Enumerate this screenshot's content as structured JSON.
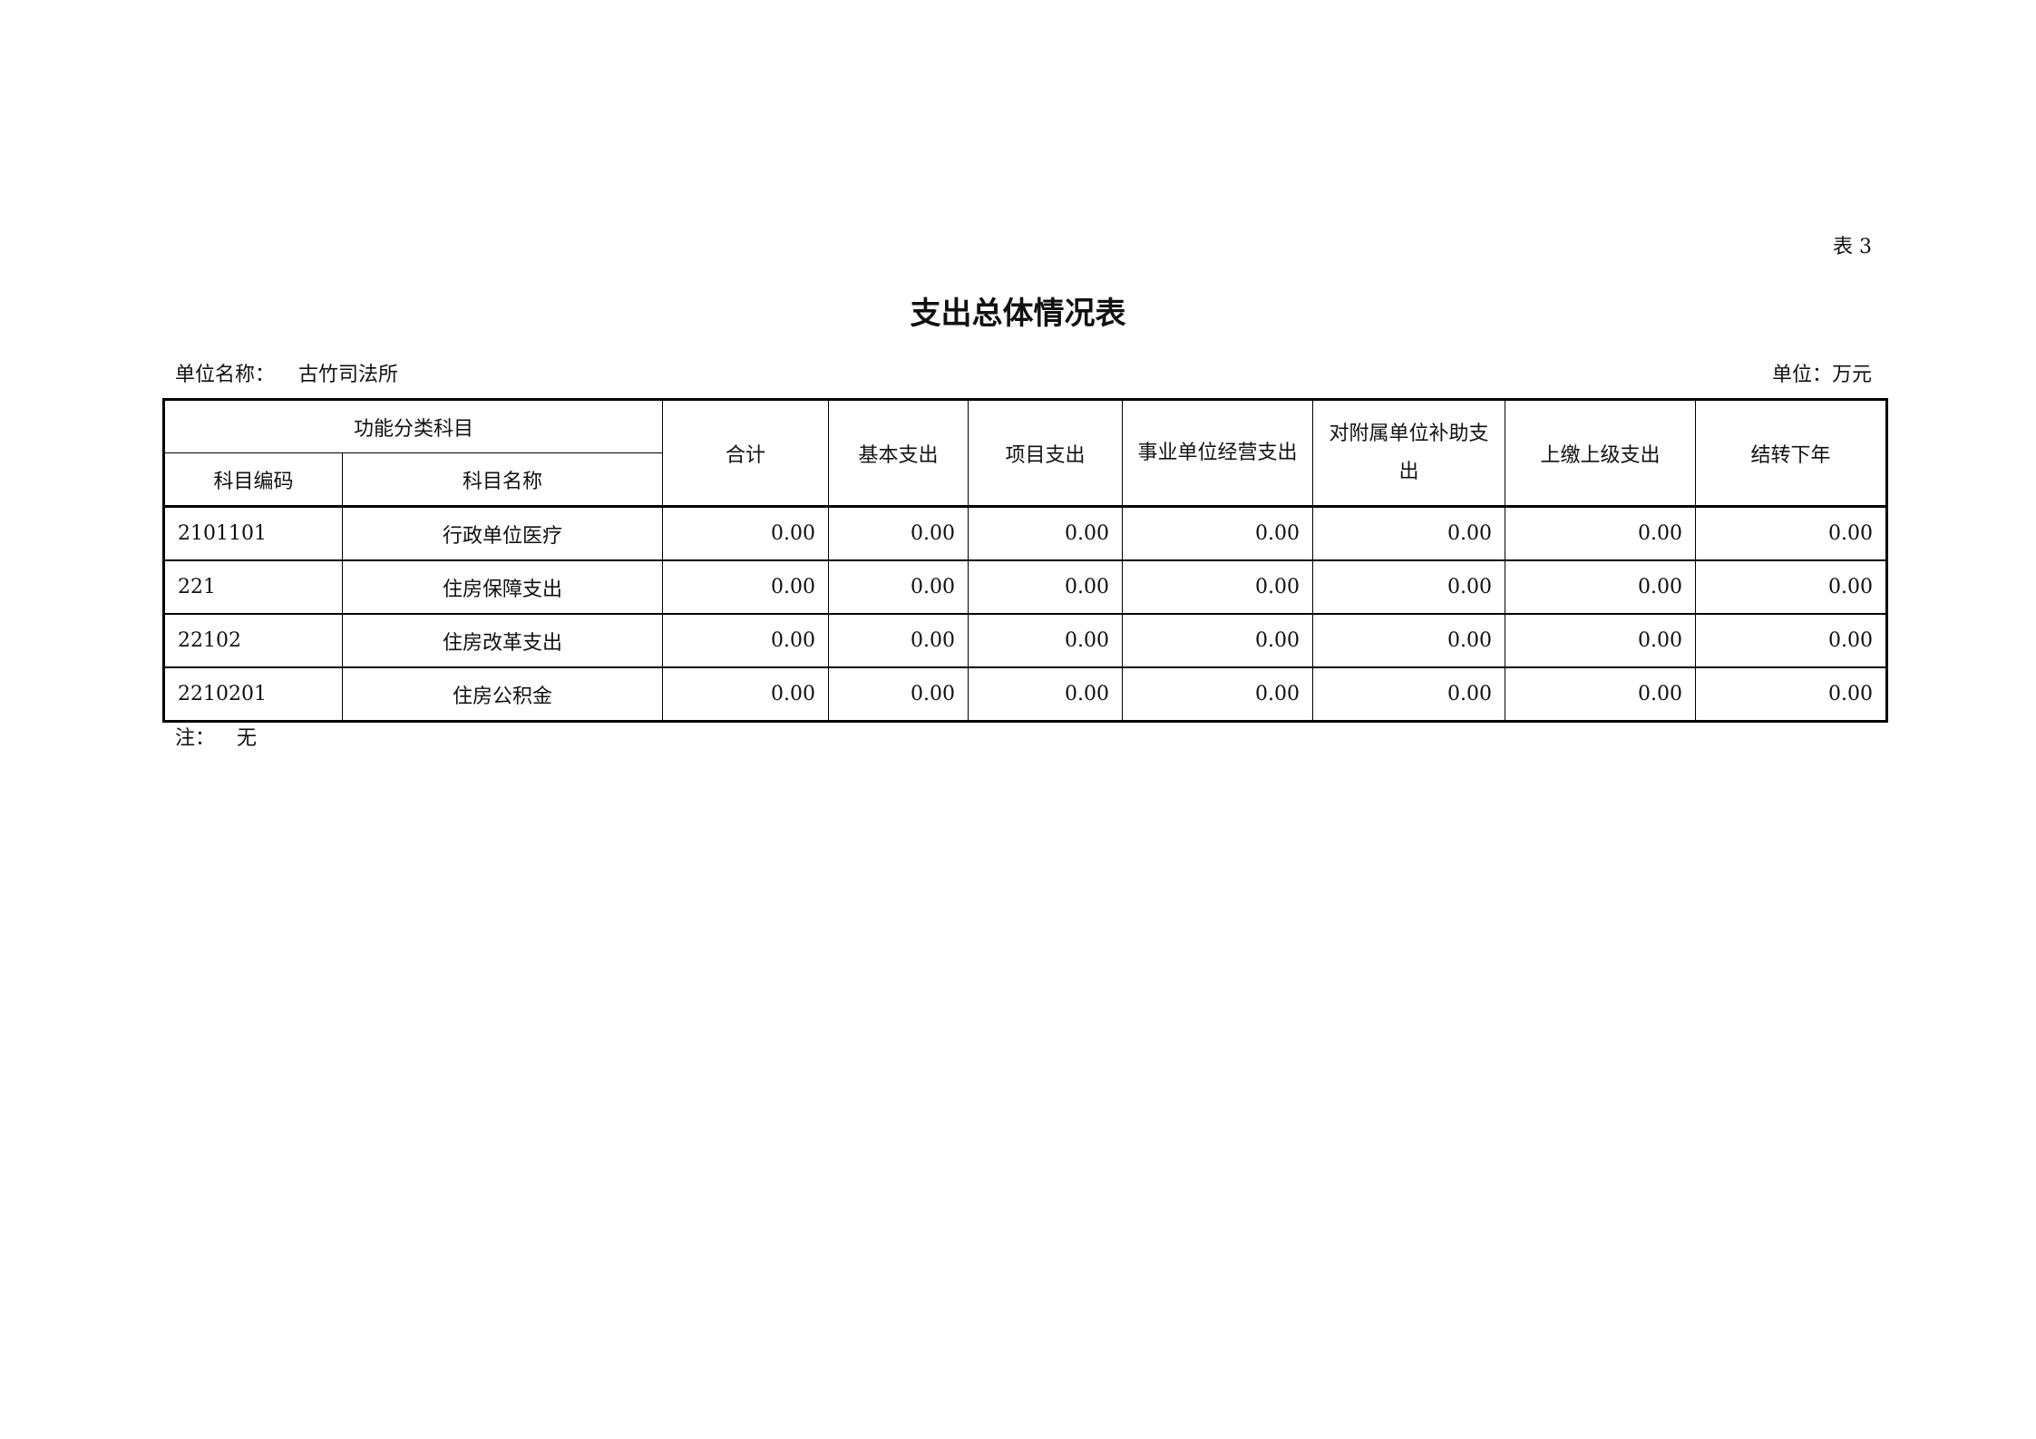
{
  "table_no": "表 3",
  "title": "支出总体情况表",
  "unit_name_label": "单位名称：",
  "unit_name": "古竹司法所",
  "unit_label": "单位：万元",
  "header": {
    "group": "功能分类科目",
    "code": "科目编码",
    "name": "科目名称",
    "columns": [
      "合计",
      "基本支出",
      "项目支出",
      "事业单位经营支出",
      "对附属单位补助支出",
      "上缴上级支出",
      "结转下年"
    ]
  },
  "rows": [
    {
      "code": "2101101",
      "name": "行政单位医疗",
      "values": [
        "0.00",
        "0.00",
        "0.00",
        "0.00",
        "0.00",
        "0.00",
        "0.00"
      ]
    },
    {
      "code": "221",
      "name": "住房保障支出",
      "values": [
        "0.00",
        "0.00",
        "0.00",
        "0.00",
        "0.00",
        "0.00",
        "0.00"
      ]
    },
    {
      "code": "22102",
      "name": "住房改革支出",
      "values": [
        "0.00",
        "0.00",
        "0.00",
        "0.00",
        "0.00",
        "0.00",
        "0.00"
      ]
    },
    {
      "code": "2210201",
      "name": "住房公积金",
      "values": [
        "0.00",
        "0.00",
        "0.00",
        "0.00",
        "0.00",
        "0.00",
        "0.00"
      ]
    }
  ],
  "note_label": "注：",
  "note": "无"
}
